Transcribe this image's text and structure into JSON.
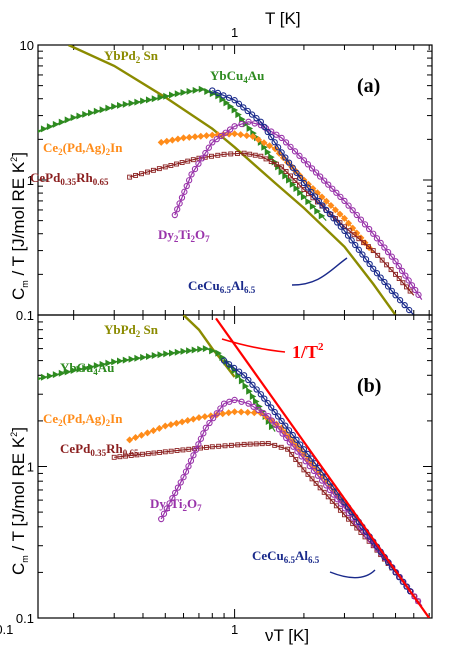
{
  "chart_data": [
    {
      "panel": "(a)",
      "type": "line",
      "xscale": "log",
      "yscale": "log",
      "x_axis_title": "T  [K]",
      "y_axis_title": "C_m / T  [J/mol RE K^2]",
      "xlim": [
        0.14,
        7.2
      ],
      "ylim": [
        0.1,
        10
      ],
      "x_tick_labels": [
        "1"
      ],
      "y_tick_labels": [
        "10",
        "1",
        "0.1"
      ],
      "series": [
        {
          "name": "YbPd2Sn",
          "color": "#8b8b00",
          "marker": "none",
          "points": [
            [
              0.19,
              10.0
            ],
            [
              0.3,
              7.0
            ],
            [
              0.5,
              4.1
            ],
            [
              0.8,
              2.4
            ],
            [
              1.0,
              1.75
            ],
            [
              1.5,
              0.95
            ],
            [
              2.0,
              0.62
            ],
            [
              3.0,
              0.32
            ],
            [
              4.0,
              0.17
            ],
            [
              5.0,
              0.1
            ]
          ]
        },
        {
          "name": "YbCu4Au",
          "color": "#2e8b20",
          "marker": "triangle",
          "points": [
            [
              0.14,
              2.3
            ],
            [
              0.2,
              2.9
            ],
            [
              0.3,
              3.5
            ],
            [
              0.45,
              4.0
            ],
            [
              0.6,
              4.45
            ],
            [
              0.72,
              4.7
            ],
            [
              0.85,
              4.2
            ],
            [
              1.0,
              3.3
            ],
            [
              1.3,
              1.9
            ],
            [
              1.6,
              1.15
            ],
            [
              2.0,
              0.75
            ],
            [
              2.5,
              0.5
            ]
          ]
        },
        {
          "name": "Ce2(Pd,Ag)2In",
          "color": "#ff8c1a",
          "marker": "diamond",
          "points": [
            [
              0.48,
              1.9
            ],
            [
              0.6,
              2.05
            ],
            [
              0.8,
              2.15
            ],
            [
              1.0,
              2.2
            ],
            [
              1.2,
              2.1
            ],
            [
              1.5,
              1.7
            ],
            [
              2.0,
              1.0
            ],
            [
              3.0,
              0.52
            ],
            [
              4.0,
              0.29
            ]
          ]
        },
        {
          "name": "CePd0.35Rh0.65",
          "color": "#8b2020",
          "marker": "square",
          "points": [
            [
              0.35,
              1.05
            ],
            [
              0.5,
              1.25
            ],
            [
              0.7,
              1.45
            ],
            [
              0.9,
              1.55
            ],
            [
              1.1,
              1.58
            ],
            [
              1.3,
              1.5
            ],
            [
              1.6,
              1.25
            ],
            [
              2.0,
              0.85
            ],
            [
              3.0,
              0.45
            ],
            [
              4.0,
              0.3
            ],
            [
              5.0,
              0.2
            ],
            [
              6.0,
              0.14
            ]
          ]
        },
        {
          "name": "Dy2Ti2O7",
          "color": "#9933aa",
          "marker": "circle-open",
          "points": [
            [
              0.55,
              0.55
            ],
            [
              0.65,
              1.1
            ],
            [
              0.8,
              1.9
            ],
            [
              1.0,
              2.5
            ],
            [
              1.15,
              2.7
            ],
            [
              1.3,
              2.55
            ],
            [
              1.6,
              2.05
            ],
            [
              2.0,
              1.4
            ],
            [
              3.0,
              0.7
            ],
            [
              4.0,
              0.4
            ],
            [
              5.0,
              0.25
            ],
            [
              6.5,
              0.13
            ]
          ]
        },
        {
          "name": "CeCu6.5Al6.5",
          "color": "#1a2a8b",
          "marker": "circle-open",
          "points": [
            [
              0.8,
              4.6
            ],
            [
              1.0,
              3.9
            ],
            [
              1.3,
              2.7
            ],
            [
              1.6,
              1.6
            ],
            [
              2.0,
              0.95
            ],
            [
              2.5,
              0.6
            ],
            [
              3.0,
              0.42
            ],
            [
              4.0,
              0.22
            ],
            [
              5.0,
              0.14
            ],
            [
              6.0,
              0.1
            ]
          ]
        }
      ]
    },
    {
      "panel": "(b)",
      "type": "line",
      "xscale": "log",
      "yscale": "log",
      "x_axis_title": "νT  [K]",
      "y_axis_title": "C_m / T  [J/mol RE K^2]",
      "xlim": [
        0.14,
        7.2
      ],
      "ylim": [
        0.1,
        10
      ],
      "x_tick_labels": [
        "0.1",
        "1"
      ],
      "y_tick_labels": [
        "1",
        "0.1"
      ],
      "annotation": "1/T 2",
      "series": [
        {
          "name": "YbPd2Sn",
          "color": "#8b8b00",
          "marker": "none",
          "points": [
            [
              0.6,
              10.0
            ],
            [
              0.7,
              8.0
            ],
            [
              0.8,
              6.0
            ],
            [
              0.9,
              4.8
            ],
            [
              1.0,
              3.9
            ]
          ]
        },
        {
          "name": "YbCu4Au",
          "color": "#2e8b20",
          "marker": "triangle",
          "points": [
            [
              0.14,
              3.8
            ],
            [
              0.2,
              4.3
            ],
            [
              0.3,
              4.9
            ],
            [
              0.45,
              5.4
            ],
            [
              0.6,
              5.75
            ],
            [
              0.75,
              6.0
            ],
            [
              0.85,
              5.6
            ],
            [
              1.0,
              4.3
            ],
            [
              1.2,
              2.9
            ],
            [
              1.5,
              1.7
            ]
          ]
        },
        {
          "name": "Ce2(Pd,Ag)2In",
          "color": "#ff8c1a",
          "marker": "diamond",
          "points": [
            [
              0.35,
              1.5
            ],
            [
              0.5,
              1.85
            ],
            [
              0.7,
              2.1
            ],
            [
              1.0,
              2.3
            ],
            [
              1.3,
              2.25
            ],
            [
              1.6,
              1.8
            ],
            [
              2.0,
              1.2
            ],
            [
              2.5,
              0.8
            ],
            [
              3.5,
              0.42
            ]
          ]
        },
        {
          "name": "CePd0.35Rh0.65",
          "color": "#8b2020",
          "marker": "square",
          "points": [
            [
              0.3,
              1.15
            ],
            [
              0.5,
              1.25
            ],
            [
              0.8,
              1.35
            ],
            [
              1.1,
              1.4
            ],
            [
              1.4,
              1.42
            ],
            [
              1.7,
              1.3
            ],
            [
              2.0,
              0.95
            ],
            [
              3.0,
              0.48
            ],
            [
              4.0,
              0.3
            ],
            [
              5.0,
              0.2
            ],
            [
              6.5,
              0.12
            ]
          ]
        },
        {
          "name": "Dy2Ti2O7",
          "color": "#9933aa",
          "marker": "circle-open",
          "points": [
            [
              0.48,
              0.45
            ],
            [
              0.6,
              0.85
            ],
            [
              0.75,
              1.8
            ],
            [
              0.9,
              2.6
            ],
            [
              1.0,
              2.75
            ],
            [
              1.15,
              2.6
            ],
            [
              1.4,
              2.15
            ],
            [
              1.8,
              1.35
            ],
            [
              2.5,
              0.75
            ],
            [
              3.5,
              0.4
            ],
            [
              4.5,
              0.25
            ],
            [
              6.5,
              0.12
            ]
          ]
        },
        {
          "name": "CeCu6.5Al6.5",
          "color": "#1a2a8b",
          "marker": "circle-open",
          "points": [
            [
              0.9,
              5.0
            ],
            [
              1.1,
              4.0
            ],
            [
              1.3,
              3.0
            ],
            [
              1.6,
              2.0
            ],
            [
              2.0,
              1.3
            ],
            [
              2.5,
              0.85
            ],
            [
              3.0,
              0.58
            ],
            [
              4.0,
              0.32
            ],
            [
              5.0,
              0.2
            ],
            [
              6.0,
              0.14
            ]
          ]
        },
        {
          "name": "1/T 2",
          "color": "#ff0000",
          "marker": "none",
          "points": [
            [
              0.83,
              9.5
            ],
            [
              7.0,
              0.1
            ]
          ]
        }
      ]
    }
  ],
  "labels": {
    "top_x_title": "T  [K]",
    "bottom_x_title": "νT  [K]",
    "y_title": "C",
    "y_title_sub": "m",
    "y_title_rest": " / T  [J/mol RE K",
    "y_title_sup": "2",
    "y_title_end": "]",
    "tag_a": "(a)",
    "tag_b": "(b)",
    "inv_t2_main": "1/T",
    "inv_t2_sup": "2"
  }
}
